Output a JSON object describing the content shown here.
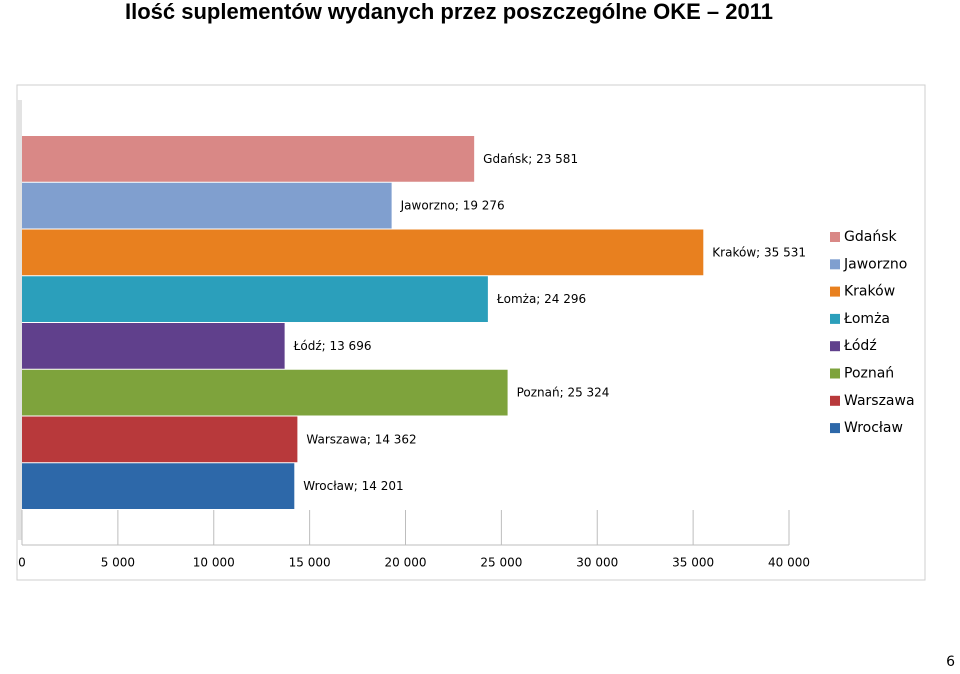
{
  "chart_data": {
    "type": "hbar",
    "title": "Ilość suplementów wydanych przez poszczególne OKE – 2011",
    "series": [
      {
        "name": "Gdańsk",
        "color": "#d98886",
        "values": [
          23581
        ],
        "value_labels": [
          "Gdańsk; 23 581"
        ]
      },
      {
        "name": "Jaworzno",
        "color": "#809fcf",
        "values": [
          19276
        ],
        "value_labels": [
          "Jaworzno; 19 276"
        ]
      },
      {
        "name": "Kraków",
        "color": "#e8801f",
        "values": [
          35531
        ],
        "value_labels": [
          "Kraków; 35 531"
        ]
      },
      {
        "name": "Łomża",
        "color": "#2b9fbb",
        "values": [
          24296
        ],
        "value_labels": [
          "Łomża; 24 296"
        ]
      },
      {
        "name": "Łódź",
        "color": "#60408c",
        "values": [
          13696
        ],
        "value_labels": [
          "Łódź; 13 696"
        ]
      },
      {
        "name": "Poznań",
        "color": "#7ea33c",
        "values": [
          25324
        ],
        "value_labels": [
          "Poznań; 25 324"
        ]
      },
      {
        "name": "Warszawa",
        "color": "#b8393b",
        "values": [
          14362
        ],
        "value_labels": [
          "Warszawa; 14 362"
        ]
      },
      {
        "name": "Wrocław",
        "color": "#2d68a9",
        "values": [
          14201
        ],
        "value_labels": [
          "Wrocław; 14 201"
        ]
      }
    ],
    "xlim": [
      0,
      40000
    ],
    "xticks": [
      0,
      {
        "value": 5000,
        "label": "5 000"
      },
      {
        "value": 10000,
        "label": "10 000"
      },
      {
        "value": 15000,
        "label": "15 000"
      },
      {
        "value": 20000,
        "label": "20 000"
      },
      {
        "value": 25000,
        "label": "25 000"
      },
      {
        "value": 30000,
        "label": "30 000"
      },
      {
        "value": 35000,
        "label": "35 000"
      },
      {
        "value": 40000,
        "label": "40 000"
      }
    ],
    "legend": "right"
  },
  "page_number": "6"
}
